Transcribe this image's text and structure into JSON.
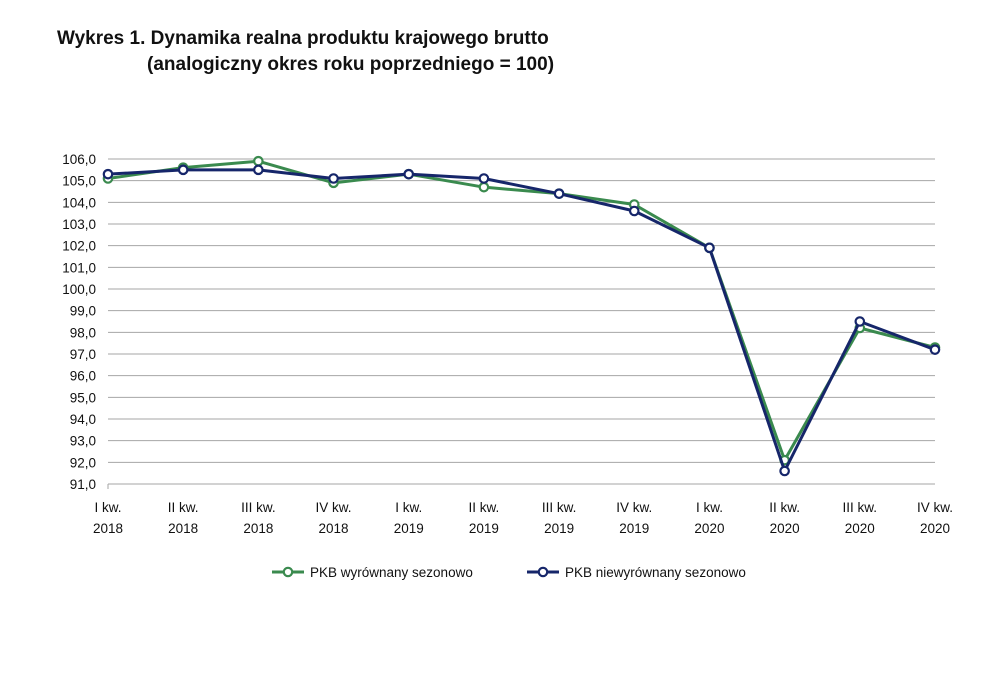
{
  "chart_data": {
    "type": "line",
    "title_line1": "Wykres 1. Dynamika realna produktu krajowego brutto",
    "title_line2": "(analogiczny okres roku poprzedniego = 100)",
    "xlabel": "",
    "ylabel": "",
    "categories": [
      [
        "I kw.",
        "2018"
      ],
      [
        "II kw.",
        "2018"
      ],
      [
        "III kw.",
        "2018"
      ],
      [
        "IV kw.",
        "2018"
      ],
      [
        "I kw.",
        "2019"
      ],
      [
        "II kw.",
        "2019"
      ],
      [
        "III kw.",
        "2019"
      ],
      [
        "IV kw.",
        "2019"
      ],
      [
        "I kw.",
        "2020"
      ],
      [
        "II kw.",
        "2020"
      ],
      [
        "III kw.",
        "2020"
      ],
      [
        "IV kw.",
        "2020"
      ]
    ],
    "ylim": [
      91,
      106
    ],
    "yticks": [
      "91,0",
      "92,0",
      "93,0",
      "94,0",
      "95,0",
      "96,0",
      "97,0",
      "98,0",
      "99,0",
      "100,0",
      "101,0",
      "102,0",
      "103,0",
      "104,0",
      "105,0",
      "106,0"
    ],
    "grid": true,
    "legend_position": "bottom",
    "series": [
      {
        "name": "PKB wyrównany sezonowo",
        "color": "#3a8a4e",
        "values": [
          105.1,
          105.6,
          105.9,
          104.9,
          105.3,
          104.7,
          104.4,
          103.9,
          101.9,
          92.1,
          98.2,
          97.3
        ]
      },
      {
        "name": "PKB niewyrównany sezonowo",
        "color": "#16266a",
        "values": [
          105.3,
          105.5,
          105.5,
          105.1,
          105.3,
          105.1,
          104.4,
          103.6,
          101.9,
          91.6,
          98.5,
          97.2
        ]
      }
    ]
  }
}
